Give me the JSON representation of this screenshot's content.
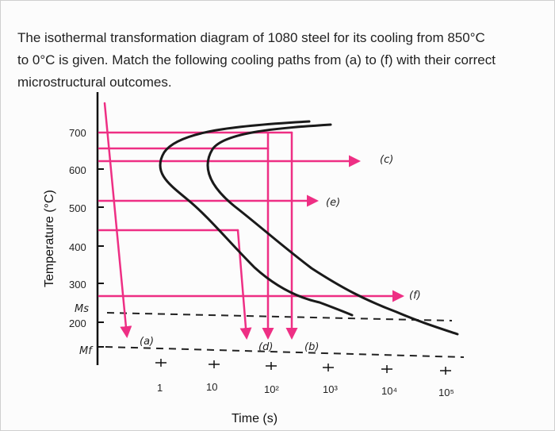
{
  "question": {
    "lines": [
      "The isothermal transformation diagram of 1080 steel for its cooling from 850°C",
      "to 0°C is given. Match the following cooling paths from (a) to (f) with their correct",
      "microstructural outcomes."
    ]
  },
  "diagram": {
    "y_axis_title": "Temperature (°C)",
    "x_axis_title": "Time (s)",
    "y_ticks": [
      "700",
      "600",
      "500",
      "400",
      "300"
    ],
    "ms_label": "Ms",
    "ms_value": "200",
    "mf_label": "Mf",
    "x_ticks": [
      "1",
      "10",
      "10²",
      "10³",
      "10⁴",
      "10⁵"
    ],
    "path_labels": {
      "a": "(a)",
      "b": "(b)",
      "c": "(c)",
      "d": "(d)",
      "e": "(e)",
      "f": "(f)"
    },
    "colors": {
      "path": "#ee2f84",
      "curve": "#1a1a1a"
    }
  }
}
